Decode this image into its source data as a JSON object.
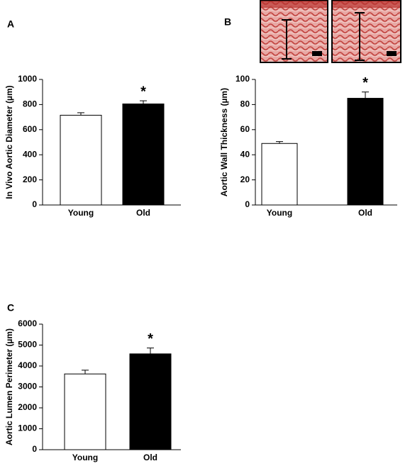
{
  "chart_data": [
    {
      "type": "bar",
      "panel": "A",
      "ylabel": "In Vivo Aortic Diameter (µm)",
      "categories": [
        "Young",
        "Old"
      ],
      "values": [
        715,
        805
      ],
      "errors": [
        20,
        25
      ],
      "colors": [
        "#ffffff",
        "#000000"
      ],
      "significance": [
        null,
        "*"
      ],
      "ylim": [
        0,
        1000
      ],
      "yticks": [
        0,
        200,
        400,
        600,
        800,
        1000
      ]
    },
    {
      "type": "bar",
      "panel": "B",
      "ylabel": "Aortic Wall Thickness (µm)",
      "categories": [
        "Young",
        "Old"
      ],
      "values": [
        49,
        85
      ],
      "errors": [
        1.5,
        5
      ],
      "colors": [
        "#ffffff",
        "#000000"
      ],
      "significance": [
        null,
        "*"
      ],
      "ylim": [
        0,
        100
      ],
      "yticks": [
        0,
        20,
        40,
        60,
        80,
        100
      ]
    },
    {
      "type": "bar",
      "panel": "C",
      "ylabel": "Aortic Lumen Perimeter (µm)",
      "categories": [
        "Young",
        "Old"
      ],
      "values": [
        3620,
        4580
      ],
      "errors": [
        180,
        280
      ],
      "colors": [
        "#ffffff",
        "#000000"
      ],
      "significance": [
        null,
        "*"
      ],
      "ylim": [
        0,
        6000
      ],
      "yticks": [
        0,
        1000,
        2000,
        3000,
        4000,
        5000,
        6000
      ]
    }
  ]
}
